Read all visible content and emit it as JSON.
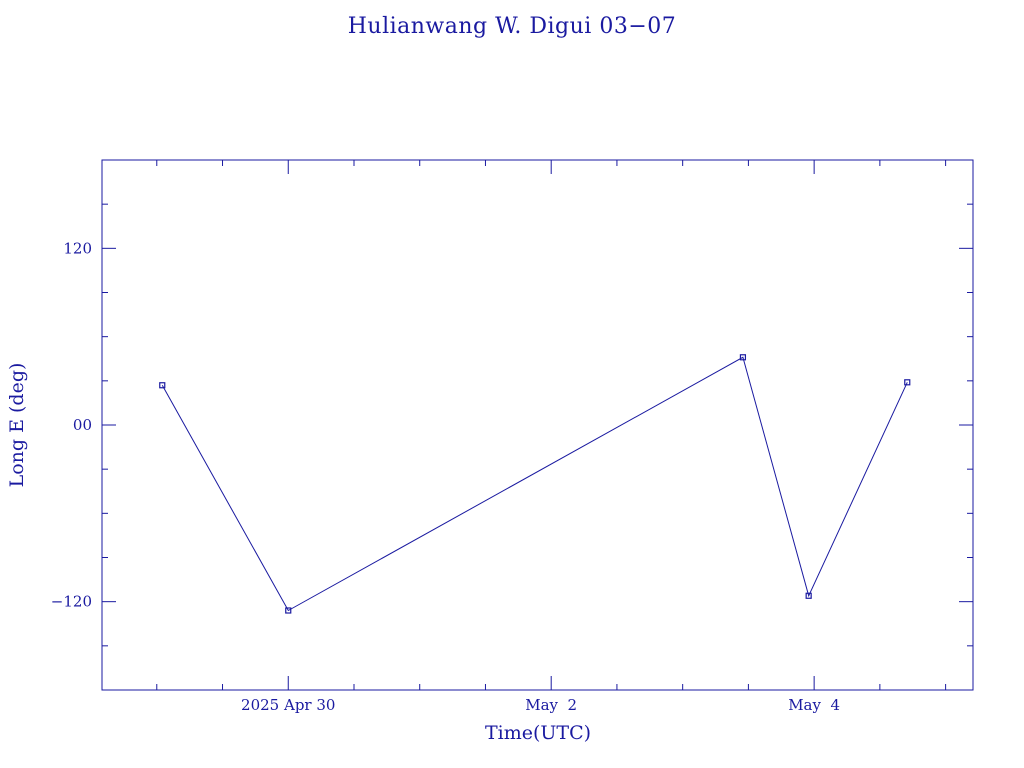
{
  "chart_data": {
    "type": "line",
    "title": "Hulianwang W. Digui 03−07",
    "xlabel": "Time(UTC)",
    "ylabel": "Long E (deg)",
    "ylim": [
      -180,
      180
    ],
    "xlim": [
      "2025-04-28T14:00",
      "2025-05-05T05:00"
    ],
    "y_ticks": [
      {
        "value": 120,
        "label": "120"
      },
      {
        "value": 0,
        "label": "00"
      },
      {
        "value": -120,
        "label": "−120"
      }
    ],
    "x_ticks": [
      {
        "value": "2025-04-30T00:00",
        "label": "2025 Apr 30"
      },
      {
        "value": "2025-05-02T00:00",
        "label": "May  2"
      },
      {
        "value": "2025-05-04T00:00",
        "label": "May  4"
      }
    ],
    "grid": false,
    "series": [
      {
        "color": "#1a1aa0",
        "marker": "square",
        "points": [
          {
            "x": "2025-04-29T01:00",
            "y": 27
          },
          {
            "x": "2025-04-30T00:00",
            "y": -126
          },
          {
            "x": "2025-05-03T11:00",
            "y": 46
          },
          {
            "x": "2025-05-03T23:00",
            "y": -116
          },
          {
            "x": "2025-05-04T17:00",
            "y": 29
          }
        ]
      }
    ]
  }
}
